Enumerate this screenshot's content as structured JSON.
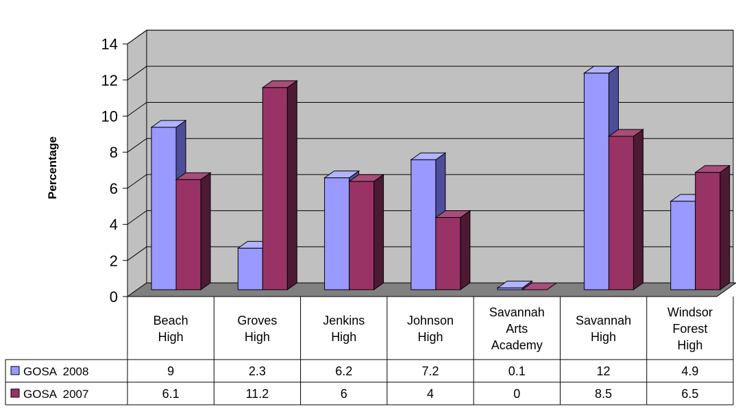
{
  "chart_data": {
    "type": "bar",
    "style": "3d-clustered-column-with-data-table",
    "ylabel": "Percentage",
    "ylim": [
      0,
      14
    ],
    "yticks": [
      0,
      2,
      4,
      6,
      8,
      10,
      12,
      14
    ],
    "grid": true,
    "categories": [
      [
        "Beach",
        "High"
      ],
      [
        "Groves",
        "High"
      ],
      [
        "Jenkins",
        "High"
      ],
      [
        "Johnson",
        "High"
      ],
      [
        "Savannah",
        "Arts",
        "Academy"
      ],
      [
        "Savannah",
        "High"
      ],
      [
        "Windsor",
        "Forest",
        "High"
      ]
    ],
    "series": [
      {
        "name": "GOSA  2008",
        "color": "#9999ff",
        "side": "#4d4d99",
        "top": "#b3b3ff",
        "values": [
          9,
          2.3,
          6.2,
          7.2,
          0.1,
          12,
          4.9
        ],
        "labels": [
          "9",
          "2.3",
          "6.2",
          "7.2",
          "0.1",
          "12",
          "4.9"
        ]
      },
      {
        "name": "GOSA  2007",
        "color": "#993366",
        "side": "#4d1a33",
        "top": "#a84d7a",
        "values": [
          6.1,
          11.2,
          6,
          4,
          0,
          8.5,
          6.5
        ],
        "labels": [
          "6.1",
          "11.2",
          "6",
          "4",
          "0",
          "8.5",
          "6.5"
        ]
      }
    ],
    "colors": {
      "wall": "#c0c0c0",
      "floor": "#808080",
      "grid": "#000000"
    }
  }
}
